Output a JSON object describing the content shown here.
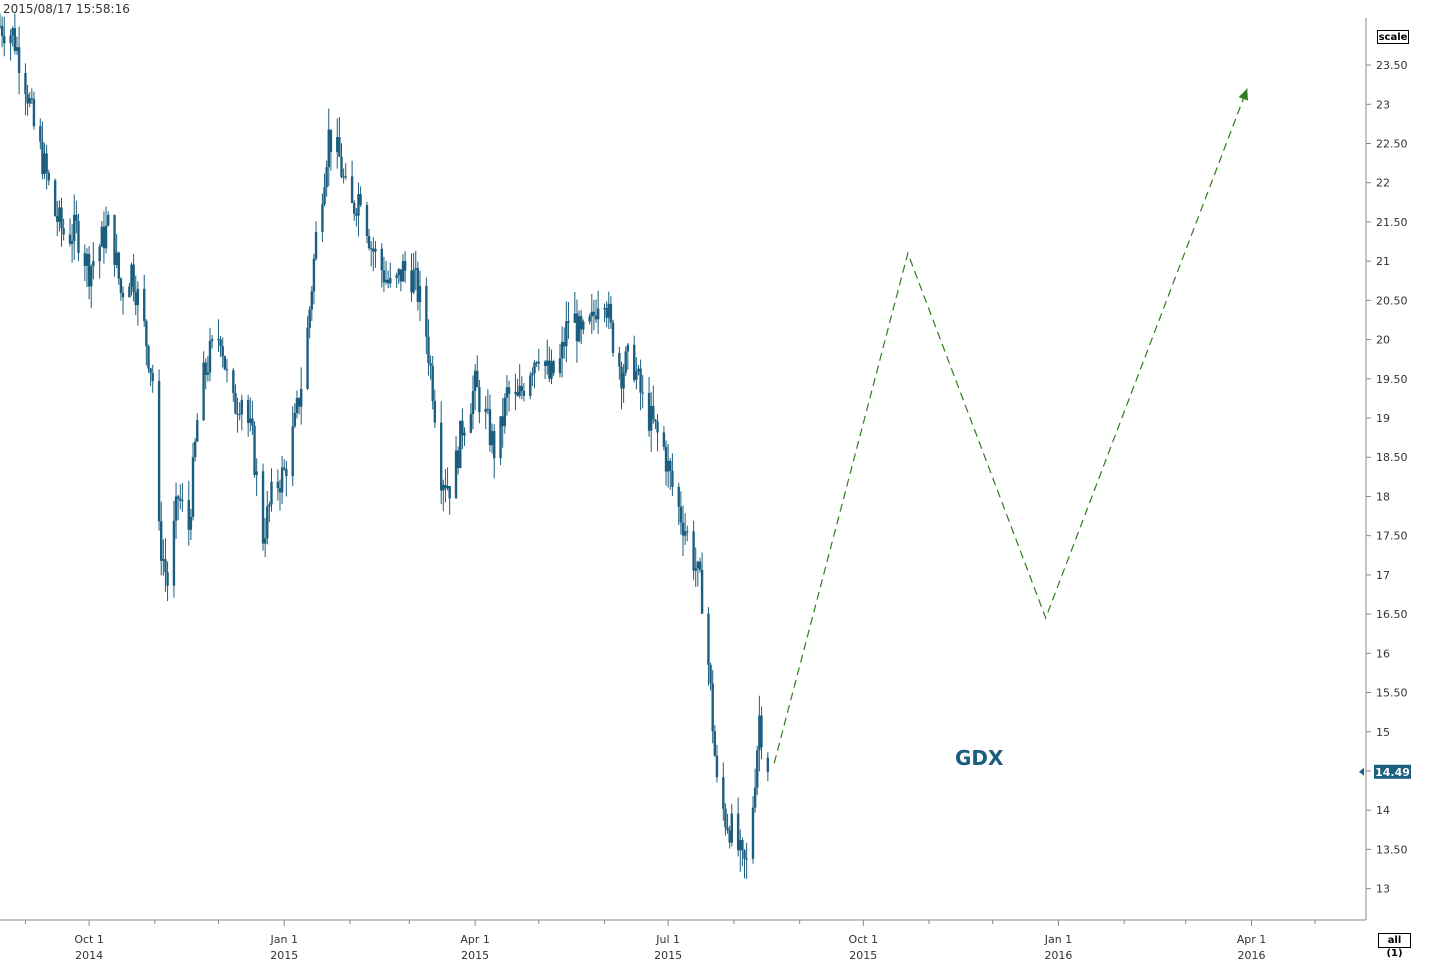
{
  "header": {
    "timestamp": "2015/08/17 15:58:16",
    "scale_label": "scale",
    "all_label": "all (1)"
  },
  "colors": {
    "candle": "#1b5e7f",
    "projection": "#2e7d1e",
    "grid": "#cccccc",
    "axis": "#888888",
    "text": "#333333"
  },
  "chart_data": {
    "type": "candlestick",
    "title": "",
    "symbol_label": "GDX",
    "last_price": "14.49",
    "y_ticks": [
      "13",
      "13.50",
      "14",
      "14.50",
      "15",
      "15.50",
      "16",
      "16.50",
      "17",
      "17.50",
      "18",
      "18.50",
      "19",
      "19.50",
      "20",
      "20.50",
      "21",
      "21.50",
      "22",
      "22.50",
      "23",
      "23.50"
    ],
    "y_tick_values": [
      13,
      13.5,
      14,
      14.5,
      15,
      15.5,
      16,
      16.5,
      17,
      17.5,
      18,
      18.5,
      19,
      19.5,
      20,
      20.5,
      21,
      21.5,
      22,
      22.5,
      23,
      23.5
    ],
    "ylim": [
      12.6,
      24.1
    ],
    "xlim": [
      "2014-08-20",
      "2016-05-25"
    ],
    "x_ticks": [
      {
        "date": "2014-10-01",
        "month": "Oct 1",
        "year": "2014"
      },
      {
        "date": "2015-01-01",
        "month": "Jan 1",
        "year": "2015"
      },
      {
        "date": "2015-04-01",
        "month": "Apr 1",
        "year": "2015"
      },
      {
        "date": "2015-07-01",
        "month": "Jul 1",
        "year": "2015"
      },
      {
        "date": "2015-10-01",
        "month": "Oct 1",
        "year": "2015"
      },
      {
        "date": "2016-01-01",
        "month": "Jan 1",
        "year": "2016"
      },
      {
        "date": "2016-04-01",
        "month": "Apr 1",
        "year": "2016"
      }
    ],
    "x_minor_ticks": [
      "2014-09-01",
      "2014-11-01",
      "2014-12-01",
      "2015-02-01",
      "2015-03-01",
      "2015-05-01",
      "2015-06-01",
      "2015-08-01",
      "2015-09-01",
      "2015-11-01",
      "2015-12-01",
      "2016-02-01",
      "2016-03-01",
      "2016-05-01"
    ],
    "price_path": [
      [
        "2014-08-20",
        24.0
      ],
      [
        "2014-08-26",
        23.9
      ],
      [
        "2014-09-01",
        23.3
      ],
      [
        "2014-09-05",
        22.7
      ],
      [
        "2014-09-10",
        22.2
      ],
      [
        "2014-09-15",
        21.6
      ],
      [
        "2014-09-20",
        21.3
      ],
      [
        "2014-09-25",
        21.4
      ],
      [
        "2014-10-01",
        20.9
      ],
      [
        "2014-10-06",
        21.2
      ],
      [
        "2014-10-11",
        21.5
      ],
      [
        "2014-10-16",
        20.6
      ],
      [
        "2014-10-21",
        20.9
      ],
      [
        "2014-10-26",
        20.3
      ],
      [
        "2014-10-31",
        19.5
      ],
      [
        "2014-11-03",
        17.5
      ],
      [
        "2014-11-07",
        16.9
      ],
      [
        "2014-11-12",
        18.0
      ],
      [
        "2014-11-17",
        17.6
      ],
      [
        "2014-11-22",
        19.3
      ],
      [
        "2014-11-27",
        19.8
      ],
      [
        "2014-12-02",
        20.1
      ],
      [
        "2014-12-07",
        19.1
      ],
      [
        "2014-12-12",
        19.3
      ],
      [
        "2014-12-17",
        18.7
      ],
      [
        "2014-12-22",
        17.5
      ],
      [
        "2014-12-27",
        18.1
      ],
      [
        "2015-01-01",
        18.3
      ],
      [
        "2015-01-06",
        18.9
      ],
      [
        "2015-01-11",
        19.8
      ],
      [
        "2015-01-16",
        21.3
      ],
      [
        "2015-01-22",
        22.6
      ],
      [
        "2015-01-27",
        22.3
      ],
      [
        "2015-02-01",
        21.6
      ],
      [
        "2015-02-06",
        21.9
      ],
      [
        "2015-02-11",
        21.2
      ],
      [
        "2015-02-16",
        20.9
      ],
      [
        "2015-02-21",
        20.6
      ],
      [
        "2015-02-26",
        20.9
      ],
      [
        "2015-03-03",
        20.8
      ],
      [
        "2015-03-08",
        20.3
      ],
      [
        "2015-03-12",
        19.4
      ],
      [
        "2015-03-16",
        18.3
      ],
      [
        "2015-03-21",
        18.1
      ],
      [
        "2015-03-26",
        18.9
      ],
      [
        "2015-04-01",
        19.4
      ],
      [
        "2015-04-06",
        19.0
      ],
      [
        "2015-04-11",
        18.5
      ],
      [
        "2015-04-16",
        19.3
      ],
      [
        "2015-04-21",
        19.2
      ],
      [
        "2015-04-26",
        19.6
      ],
      [
        "2015-05-01",
        19.9
      ],
      [
        "2015-05-06",
        19.5
      ],
      [
        "2015-05-11",
        19.7
      ],
      [
        "2015-05-16",
        20.4
      ],
      [
        "2015-05-21",
        20.0
      ],
      [
        "2015-05-26",
        20.2
      ],
      [
        "2015-05-31",
        20.8
      ],
      [
        "2015-06-04",
        20.1
      ],
      [
        "2015-06-09",
        19.6
      ],
      [
        "2015-06-14",
        19.8
      ],
      [
        "2015-06-19",
        19.2
      ],
      [
        "2015-06-24",
        18.9
      ],
      [
        "2015-06-29",
        18.6
      ],
      [
        "2015-07-04",
        18.0
      ],
      [
        "2015-07-09",
        17.6
      ],
      [
        "2015-07-14",
        17.1
      ],
      [
        "2015-07-18",
        16.6
      ],
      [
        "2015-07-21",
        15.5
      ],
      [
        "2015-07-24",
        14.3
      ],
      [
        "2015-07-28",
        13.9
      ],
      [
        "2015-08-01",
        13.7
      ],
      [
        "2015-08-05",
        13.3
      ],
      [
        "2015-08-07",
        13.3
      ],
      [
        "2015-08-10",
        14.1
      ],
      [
        "2015-08-13",
        15.2
      ],
      [
        "2015-08-17",
        14.49
      ]
    ],
    "projection": [
      [
        "2015-08-20",
        14.6
      ],
      [
        "2015-10-22",
        21.1
      ],
      [
        "2015-12-26",
        16.45
      ],
      [
        "2016-03-30",
        23.2
      ]
    ]
  }
}
